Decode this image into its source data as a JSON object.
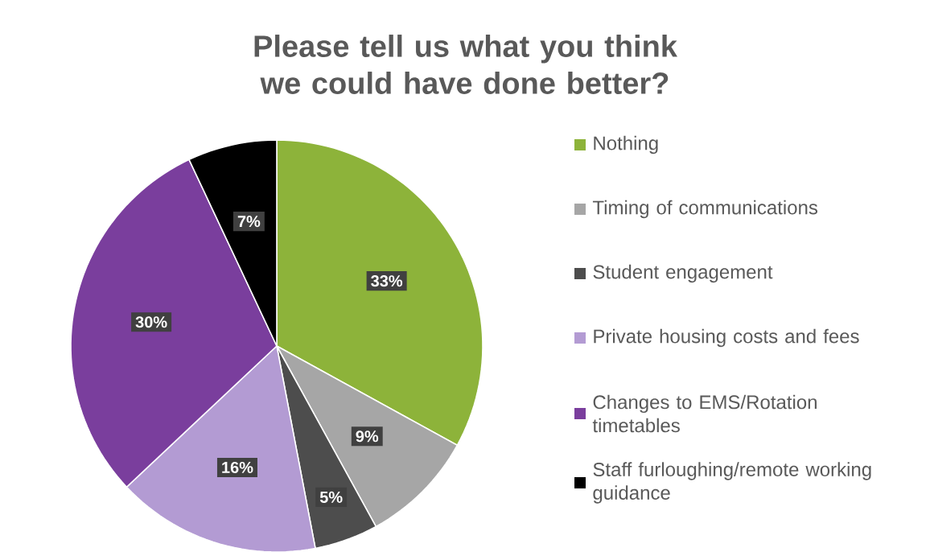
{
  "chart_data": {
    "type": "pie",
    "title": "Please tell us what you think we could have done better?",
    "categories": [
      "Nothing",
      "Timing of communications",
      "Student engagement",
      "Private housing costs and fees",
      "Changes to EMS/Rotation timetables",
      "Staff furloughing/remote working guidance"
    ],
    "values": [
      33,
      9,
      5,
      16,
      30,
      7
    ],
    "value_labels": [
      "33%",
      "9%",
      "5%",
      "16%",
      "30%",
      "7%"
    ],
    "colors": [
      "#8db33a",
      "#a6a6a6",
      "#4d4d4d",
      "#b39bd3",
      "#7a3e9d",
      "#000000"
    ],
    "legend": "right"
  }
}
